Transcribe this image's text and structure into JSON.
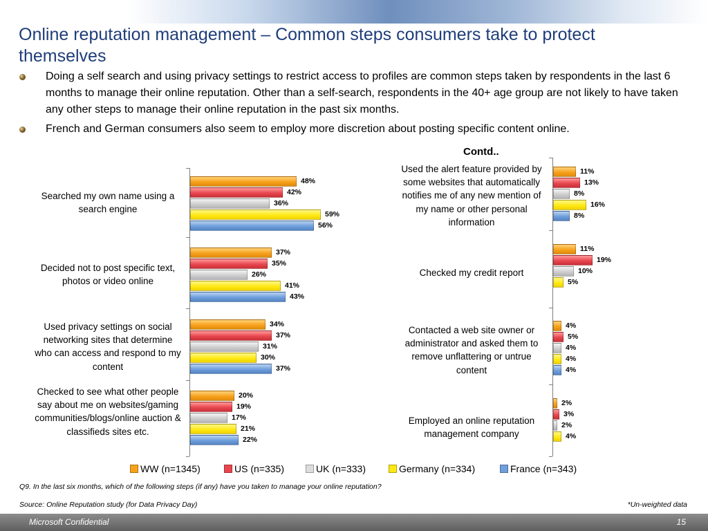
{
  "slide": {
    "title": "Online reputation management – Common steps consumers take to protect themselves",
    "bullets": [
      "Doing a self search and using privacy settings to restrict access to profiles are common steps taken by respondents in the last 6 months to manage their online reputation. Other than a self-search, respondents in the 40+ age group are not likely to have taken any other steps to manage their online reputation in the past six months.",
      "French and German consumers also seem to employ more discretion about posting specific content online."
    ],
    "contd_label": "Contd..",
    "question_note": "Q9. In the last six months, which of the following steps (if any) have you taken to manage your online reputation?",
    "source_note": "Source: Online Reputation study (for Data Privacy Day)",
    "weight_note": "*Un-weighted data",
    "footer_left": "Microsoft Confidential",
    "page_number": "15"
  },
  "colors": {
    "title": "#1f3d7a",
    "WW": "#f7a21c",
    "US": "#e8474f",
    "UK": "#cfcfcf",
    "Germany": "#ffe914",
    "France": "#6f9fdc"
  },
  "legend": [
    "WW (n=1345)",
    "US (n=335)",
    "UK (n=333)",
    "Germany (n=334)",
    "France (n=343)"
  ],
  "chart_data": [
    {
      "type": "bar",
      "orientation": "horizontal",
      "categories": [
        "Searched my own name using a search engine",
        "Decided not to post specific text, photos or video online",
        "Used privacy settings on social networking sites that determine who can access and respond to my content",
        "Checked to see what other people say about me on websites/gaming communities/blogs/online auction & classifieds sites etc."
      ],
      "series": [
        {
          "name": "WW (n=1345)",
          "values": [
            48,
            37,
            34,
            20
          ]
        },
        {
          "name": "US (n=335)",
          "values": [
            42,
            35,
            37,
            19
          ]
        },
        {
          "name": "UK (n=333)",
          "values": [
            36,
            26,
            31,
            17
          ]
        },
        {
          "name": "Germany (n=334)",
          "values": [
            59,
            41,
            30,
            21
          ]
        },
        {
          "name": "France (n=343)",
          "values": [
            56,
            43,
            37,
            22
          ]
        }
      ],
      "value_format": "percent",
      "xlim": [
        0,
        100
      ],
      "grid": false,
      "legend_position": "bottom"
    },
    {
      "type": "bar",
      "orientation": "horizontal",
      "title": "Contd..",
      "categories": [
        "Used the alert feature provided by some websites that automatically notifies me of any new mention of my name or other personal information",
        "Checked my credit report",
        "Contacted a web site owner or administrator and asked them to remove unflattering or untrue content",
        "Employed an online reputation management company"
      ],
      "series": [
        {
          "name": "WW (n=1345)",
          "values": [
            11,
            11,
            4,
            2
          ]
        },
        {
          "name": "US (n=335)",
          "values": [
            13,
            19,
            5,
            3
          ]
        },
        {
          "name": "UK (n=333)",
          "values": [
            8,
            10,
            4,
            2
          ]
        },
        {
          "name": "Germany (n=334)",
          "values": [
            16,
            5,
            4,
            4
          ]
        },
        {
          "name": "France (n=343)",
          "values": [
            8,
            null,
            4,
            null
          ]
        }
      ],
      "value_format": "percent",
      "xlim": [
        0,
        100
      ],
      "grid": false,
      "legend_position": "bottom"
    }
  ]
}
